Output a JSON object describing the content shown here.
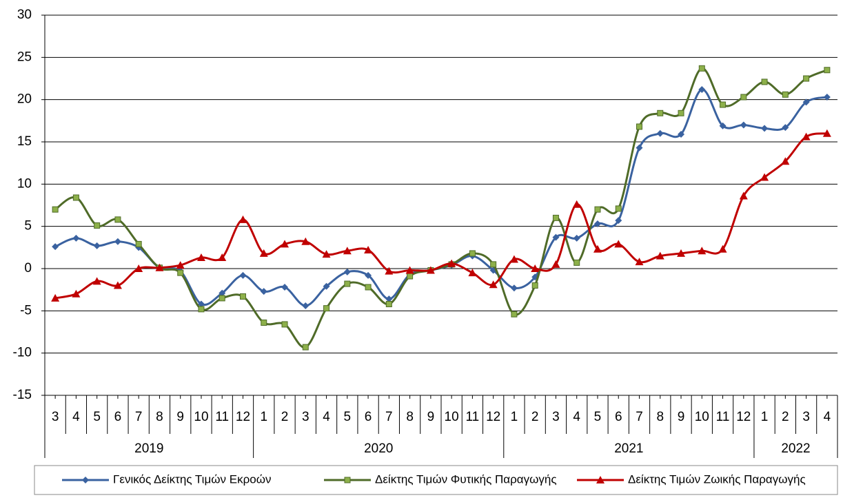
{
  "chart_data": {
    "type": "line",
    "categories": [
      "3",
      "4",
      "5",
      "6",
      "7",
      "8",
      "9",
      "10",
      "11",
      "12",
      "1",
      "2",
      "3",
      "4",
      "5",
      "6",
      "7",
      "8",
      "9",
      "10",
      "11",
      "12",
      "1",
      "2",
      "3",
      "4",
      "5",
      "6",
      "7",
      "8",
      "9",
      "10",
      "11",
      "12",
      "1",
      "2",
      "3",
      "4"
    ],
    "years": [
      "2019",
      "2020",
      "2021",
      "2022"
    ],
    "ylim": [
      -15,
      30
    ],
    "yticks": [
      -15,
      -10,
      -5,
      0,
      5,
      10,
      15,
      20,
      25,
      30
    ],
    "grid": true,
    "series": [
      {
        "name": "Γενικός Δείκτης Τιμών Εκροών",
        "color": "#3a62a0",
        "marker": "diamond",
        "values": [
          2.6,
          3.6,
          2.7,
          3.2,
          2.5,
          0.1,
          -0.3,
          -4.2,
          -2.9,
          -0.8,
          -2.7,
          -2.2,
          -4.4,
          -2.1,
          -0.4,
          -0.8,
          -3.6,
          -0.7,
          -0.2,
          0.4,
          1.5,
          -0.2,
          -2.3,
          -1.0,
          3.7,
          3.6,
          5.3,
          5.7,
          14.3,
          16.0,
          15.9,
          21.2,
          16.9,
          17.0,
          16.6,
          16.7,
          19.7,
          20.3
        ]
      },
      {
        "name": "Δείκτης Τιμών Φυτικής Παραγωγής",
        "color": "#4f6b28",
        "marker": "square",
        "values": [
          7.0,
          8.4,
          5.1,
          5.8,
          2.9,
          0.1,
          -0.5,
          -4.8,
          -3.5,
          -3.3,
          -6.4,
          -6.6,
          -9.3,
          -4.7,
          -1.8,
          -2.2,
          -4.2,
          -0.9,
          -0.2,
          0.5,
          1.8,
          0.5,
          -5.4,
          -2.0,
          6.0,
          0.7,
          7.0,
          7.1,
          16.8,
          18.4,
          18.4,
          23.7,
          19.4,
          20.3,
          22.1,
          20.6,
          22.5,
          23.5
        ]
      },
      {
        "name": "Δείκτης Τιμών Ζωικής Παραγωγής",
        "color": "#c00000",
        "marker": "triangle",
        "values": [
          -3.5,
          -3.0,
          -1.5,
          -2.0,
          0.0,
          0.1,
          0.4,
          1.3,
          1.3,
          5.8,
          1.8,
          2.9,
          3.2,
          1.7,
          2.1,
          2.2,
          -0.3,
          -0.2,
          -0.2,
          0.6,
          -0.5,
          -1.9,
          1.1,
          0.0,
          0.5,
          7.6,
          2.3,
          2.9,
          0.8,
          1.5,
          1.8,
          2.1,
          2.3,
          8.6,
          10.8,
          12.7,
          15.6,
          16.0
        ]
      }
    ]
  }
}
